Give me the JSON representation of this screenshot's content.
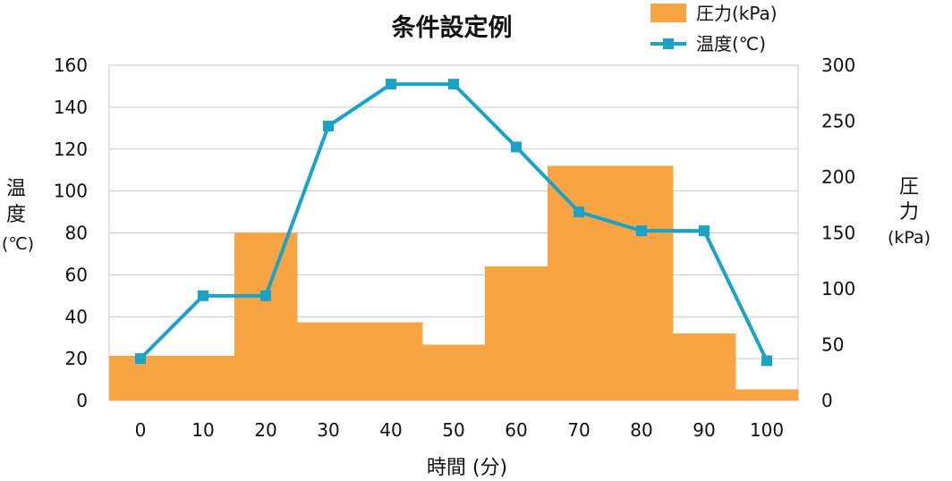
{
  "chart_data": {
    "type": "bar+line",
    "title": "条件設定例",
    "categories": [
      "0",
      "10",
      "20",
      "30",
      "40",
      "50",
      "60",
      "70",
      "80",
      "90",
      "100"
    ],
    "xlabel": "時間 (分)",
    "ylabel_left": [
      "温",
      "度",
      "(℃)"
    ],
    "ylabel_right": [
      "圧",
      "力",
      "(kPa)"
    ],
    "y_left": {
      "min": 0,
      "max": 160,
      "ticks": [
        0,
        20,
        40,
        60,
        80,
        100,
        120,
        140,
        160
      ]
    },
    "y_right": {
      "min": 0,
      "max": 300,
      "ticks": [
        0,
        50,
        100,
        150,
        200,
        250,
        300
      ]
    },
    "grid": true,
    "legend_position": "top-right",
    "series": [
      {
        "name": "圧力(kPa)",
        "type": "bar",
        "axis": "right",
        "color": "#F9A443",
        "values": [
          40,
          40,
          150,
          70,
          70,
          50,
          120,
          210,
          210,
          60,
          10
        ]
      },
      {
        "name": "温度(℃)",
        "type": "line",
        "axis": "left",
        "color": "#1AA3C8",
        "values": [
          20,
          50,
          50,
          131,
          151,
          151,
          121,
          90,
          81,
          81,
          19
        ]
      }
    ]
  }
}
